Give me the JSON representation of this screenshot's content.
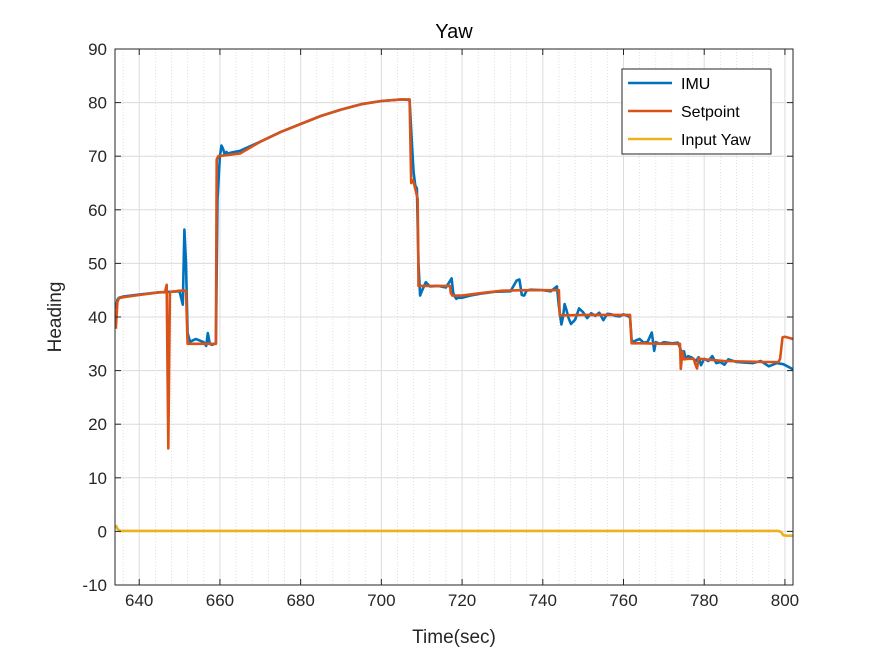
{
  "chart_data": {
    "type": "line",
    "title": "Yaw",
    "xlabel": "Time(sec)",
    "ylabel": "Heading",
    "xlim": [
      634,
      802
    ],
    "ylim": [
      -10,
      90
    ],
    "xticks": [
      640,
      660,
      680,
      700,
      720,
      740,
      760,
      780,
      800
    ],
    "yticks": [
      -10,
      0,
      10,
      20,
      30,
      40,
      50,
      60,
      70,
      80,
      90
    ],
    "grid": true,
    "minor_grid_x": true,
    "legend": "top-right",
    "series": [
      {
        "name": "IMU",
        "color": "#0072BD",
        "x": [
          634.2,
          634.6,
          635,
          636,
          640,
          645,
          650,
          650.8,
          651.2,
          651.6,
          652,
          652.6,
          653.2,
          654,
          655,
          656,
          656.6,
          657,
          657.5,
          658,
          659,
          659.4,
          660,
          660.4,
          660.8,
          661.2,
          661.6,
          662,
          663,
          665,
          670,
          675,
          680,
          685,
          690,
          695,
          700,
          705,
          707,
          707.6,
          708,
          708.4,
          708.8,
          709.2,
          709.6,
          710,
          711,
          712,
          714,
          716,
          717.4,
          717.8,
          718.2,
          718.6,
          719,
          720,
          722,
          725,
          728,
          732,
          733.5,
          734.2,
          734.8,
          735.4,
          736,
          737,
          740,
          742,
          743.5,
          744,
          744.6,
          745,
          745.4,
          745.8,
          746.4,
          747,
          748,
          749,
          750,
          751,
          752,
          753,
          754,
          755,
          756,
          757,
          758,
          759,
          760,
          761.6,
          762,
          762.4,
          763,
          764,
          765,
          766,
          767,
          767.6,
          768,
          769,
          770,
          772,
          773.5,
          774.4,
          775,
          775.4,
          776,
          777,
          778,
          778.6,
          779.2,
          780,
          781,
          782,
          783,
          784,
          785,
          786,
          788,
          790,
          792,
          794,
          796,
          798,
          799.6,
          800.6,
          801.6,
          802
        ],
        "y": [
          41.5,
          43.2,
          43.6,
          43.8,
          44.2,
          44.6,
          44.8,
          42.3,
          56.3,
          50,
          37,
          35.4,
          35.6,
          35.9,
          35.6,
          35.3,
          34.6,
          37,
          35,
          34.8,
          35.1,
          62,
          70,
          72,
          71.3,
          70.2,
          70.8,
          70.5,
          70.7,
          71,
          72.7,
          74.5,
          76,
          77.5,
          78.7,
          79.7,
          80.3,
          80.6,
          80.5,
          72,
          67,
          64.5,
          64,
          50,
          44,
          44.8,
          46.5,
          45.7,
          45.8,
          45.5,
          47.2,
          44.5,
          43.8,
          43.4,
          43.6,
          43.6,
          44,
          44.4,
          44.7,
          44.8,
          46.8,
          47,
          44.1,
          44,
          44.9,
          45.1,
          45,
          44.8,
          45.7,
          42,
          38.6,
          40,
          42.4,
          41.5,
          39.8,
          38.7,
          39.5,
          41.6,
          40.9,
          39.8,
          40.7,
          40.2,
          40.8,
          39.4,
          40.6,
          40.5,
          40.2,
          40.1,
          40.5,
          40,
          35.8,
          35.3,
          35.6,
          35.9,
          35.2,
          35.4,
          37.1,
          33.7,
          35.3,
          35,
          35.3,
          35.1,
          35.2,
          33.5,
          33.6,
          32.2,
          32.7,
          32.4,
          31.8,
          32.5,
          31,
          32.2,
          31.8,
          32.7,
          31.4,
          31.6,
          31.1,
          32.1,
          31.6,
          31.5,
          31.4,
          31.8,
          30.8,
          31.4,
          31.2,
          30.8,
          30.4,
          30.2
        ]
      },
      {
        "name": "Setpoint",
        "color": "#D95319",
        "x": [
          634.2,
          634.6,
          635,
          636,
          640,
          645,
          646.4,
          646.8,
          647.2,
          647.6,
          648,
          650,
          651.6,
          652,
          659,
          659.2,
          659.6,
          665,
          670,
          675,
          680,
          685,
          690,
          695,
          700,
          705,
          707,
          707.4,
          707.8,
          708,
          709,
          709.2,
          709.6,
          714,
          717,
          717.2,
          717.6,
          718,
          720,
          725,
          730,
          735,
          740,
          744,
          744.2,
          744.6,
          750,
          755,
          760,
          761.6,
          762,
          762.4,
          765,
          770,
          774,
          774.2,
          774.6,
          775,
          776,
          777.4,
          777.8,
          778.2,
          778.6,
          779,
          780,
          785,
          790,
          795,
          798.4,
          798.8,
          799.4,
          800,
          801,
          802
        ],
        "y": [
          37.8,
          42.8,
          43.5,
          43.7,
          44.1,
          44.6,
          44.6,
          46,
          15.5,
          44.6,
          44.7,
          44.9,
          44.9,
          35,
          35,
          69.4,
          70,
          70.5,
          72.7,
          74.5,
          76,
          77.5,
          78.7,
          79.7,
          80.3,
          80.6,
          80.6,
          65,
          65.5,
          65.2,
          62,
          45.8,
          45.8,
          45.8,
          45.8,
          44.5,
          44,
          44,
          44,
          44.5,
          44.9,
          45,
          45,
          45,
          40.3,
          40.3,
          40.4,
          40.4,
          40.4,
          40.4,
          35.1,
          35.1,
          35.1,
          35,
          35,
          30.3,
          33.5,
          32.1,
          32.2,
          32.2,
          31.2,
          30.4,
          32.3,
          32.2,
          32.1,
          31.8,
          31.7,
          31.6,
          31.6,
          32.2,
          36.2,
          36.3,
          36.1,
          35.9
        ]
      },
      {
        "name": "Input Yaw",
        "color": "#EDB120",
        "x": [
          634.2,
          634.6,
          635.2,
          640,
          660,
          680,
          700,
          720,
          740,
          760,
          780,
          797,
          798.4,
          799,
          799.6,
          800.5,
          802
        ],
        "y": [
          1.2,
          0.5,
          0.1,
          0.1,
          0.1,
          0.1,
          0.1,
          0.1,
          0.1,
          0.1,
          0.1,
          0.1,
          0.1,
          -0.1,
          -0.7,
          -0.8,
          -0.8
        ]
      }
    ]
  }
}
